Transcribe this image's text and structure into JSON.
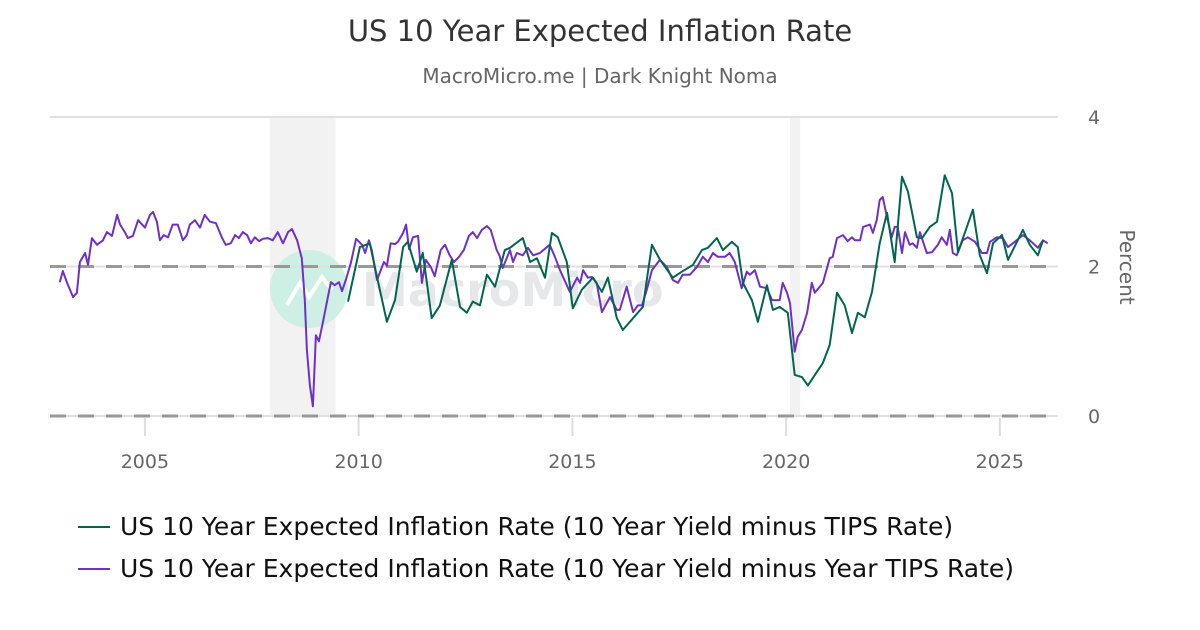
{
  "header": {
    "title": "US 10 Year Expected Inflation Rate",
    "subtitle": "MacroMicro.me | Dark Knight Noma"
  },
  "watermark": {
    "text": "MacroMicro"
  },
  "chart_data": {
    "type": "line",
    "title": "US 10 Year Expected Inflation Rate",
    "ylabel": "Percent",
    "xlabel": "",
    "xlim": [
      2002.78,
      2026.36
    ],
    "ylim": [
      0,
      4
    ],
    "x_ticks": [
      "2005",
      "2010",
      "2015",
      "2020",
      "2025"
    ],
    "y_ticks": [
      "0",
      "2",
      "4"
    ],
    "y_axis_side": "right",
    "grid": "horizontal",
    "dashed_reference_lines": [
      0,
      2
    ],
    "legend_position": "bottom",
    "recession_shading": [
      [
        2007.92,
        2009.46
      ],
      [
        2020.09,
        2020.33
      ]
    ],
    "series": [
      {
        "name": "US 10 Year Expected Inflation Rate (10 Year Yield minus TIPS Rate)",
        "color": "#00664f",
        "points": [
          [
            2009.75,
            1.53
          ],
          [
            2010.03,
            2.26
          ],
          [
            2010.26,
            2.31
          ],
          [
            2010.43,
            1.86
          ],
          [
            2010.66,
            1.26
          ],
          [
            2010.85,
            1.55
          ],
          [
            2011.04,
            2.26
          ],
          [
            2011.15,
            2.33
          ],
          [
            2011.36,
            1.93
          ],
          [
            2011.5,
            2.18
          ],
          [
            2011.71,
            1.31
          ],
          [
            2011.9,
            1.48
          ],
          [
            2012.18,
            2.09
          ],
          [
            2012.37,
            1.46
          ],
          [
            2012.53,
            1.38
          ],
          [
            2012.67,
            1.53
          ],
          [
            2012.84,
            1.48
          ],
          [
            2013.0,
            1.89
          ],
          [
            2013.19,
            1.73
          ],
          [
            2013.42,
            2.22
          ],
          [
            2013.54,
            2.25
          ],
          [
            2013.84,
            2.38
          ],
          [
            2014.01,
            2.06
          ],
          [
            2014.17,
            2.11
          ],
          [
            2014.36,
            1.85
          ],
          [
            2014.52,
            2.45
          ],
          [
            2014.66,
            2.39
          ],
          [
            2014.87,
            2.06
          ],
          [
            2015.01,
            1.44
          ],
          [
            2015.22,
            1.69
          ],
          [
            2015.48,
            1.85
          ],
          [
            2015.69,
            1.66
          ],
          [
            2015.83,
            1.85
          ],
          [
            2016.04,
            1.31
          ],
          [
            2016.18,
            1.15
          ],
          [
            2016.65,
            1.46
          ],
          [
            2016.86,
            2.29
          ],
          [
            2017.05,
            2.09
          ],
          [
            2017.35,
            1.85
          ],
          [
            2017.56,
            1.93
          ],
          [
            2017.82,
            2.02
          ],
          [
            2018.03,
            2.22
          ],
          [
            2018.17,
            2.25
          ],
          [
            2018.38,
            2.38
          ],
          [
            2018.52,
            2.22
          ],
          [
            2018.73,
            2.33
          ],
          [
            2018.87,
            2.26
          ],
          [
            2018.99,
            1.78
          ],
          [
            2019.2,
            1.55
          ],
          [
            2019.34,
            1.26
          ],
          [
            2019.55,
            1.75
          ],
          [
            2019.69,
            1.42
          ],
          [
            2019.85,
            1.46
          ],
          [
            2020.04,
            1.38
          ],
          [
            2020.2,
            0.55
          ],
          [
            2020.37,
            0.52
          ],
          [
            2020.51,
            0.41
          ],
          [
            2020.86,
            0.71
          ],
          [
            2021.02,
            0.95
          ],
          [
            2021.19,
            1.65
          ],
          [
            2021.37,
            1.48
          ],
          [
            2021.54,
            1.11
          ],
          [
            2021.68,
            1.38
          ],
          [
            2021.84,
            1.32
          ],
          [
            2022.01,
            1.66
          ],
          [
            2022.19,
            2.31
          ],
          [
            2022.36,
            2.72
          ],
          [
            2022.54,
            2.06
          ],
          [
            2022.71,
            3.2
          ],
          [
            2022.85,
            3.0
          ],
          [
            2023.06,
            2.39
          ],
          [
            2023.18,
            2.38
          ],
          [
            2023.36,
            2.53
          ],
          [
            2023.53,
            2.6
          ],
          [
            2023.71,
            3.22
          ],
          [
            2023.88,
            2.98
          ],
          [
            2024.02,
            2.19
          ],
          [
            2024.37,
            2.76
          ],
          [
            2024.53,
            2.15
          ],
          [
            2024.7,
            1.91
          ],
          [
            2024.84,
            2.31
          ],
          [
            2025.05,
            2.42
          ],
          [
            2025.19,
            2.09
          ],
          [
            2025.54,
            2.49
          ],
          [
            2025.7,
            2.29
          ],
          [
            2025.89,
            2.15
          ],
          [
            2026.01,
            2.35
          ]
        ]
      },
      {
        "name": "US 10 Year Expected Inflation Rate (10 Year Yield minus Year TIPS Rate)",
        "color": "#7030c8",
        "points": [
          [
            2003.01,
            1.79
          ],
          [
            2003.08,
            1.94
          ],
          [
            2003.18,
            1.78
          ],
          [
            2003.32,
            1.59
          ],
          [
            2003.41,
            1.65
          ],
          [
            2003.48,
            2.06
          ],
          [
            2003.6,
            2.18
          ],
          [
            2003.67,
            2.02
          ],
          [
            2003.76,
            2.38
          ],
          [
            2003.88,
            2.29
          ],
          [
            2004.02,
            2.35
          ],
          [
            2004.11,
            2.46
          ],
          [
            2004.23,
            2.41
          ],
          [
            2004.35,
            2.69
          ],
          [
            2004.42,
            2.56
          ],
          [
            2004.53,
            2.46
          ],
          [
            2004.6,
            2.38
          ],
          [
            2004.72,
            2.41
          ],
          [
            2004.84,
            2.62
          ],
          [
            2005.0,
            2.52
          ],
          [
            2005.12,
            2.69
          ],
          [
            2005.19,
            2.73
          ],
          [
            2005.28,
            2.6
          ],
          [
            2005.35,
            2.35
          ],
          [
            2005.44,
            2.42
          ],
          [
            2005.54,
            2.39
          ],
          [
            2005.65,
            2.56
          ],
          [
            2005.77,
            2.56
          ],
          [
            2005.89,
            2.35
          ],
          [
            2005.98,
            2.42
          ],
          [
            2006.05,
            2.56
          ],
          [
            2006.17,
            2.62
          ],
          [
            2006.29,
            2.52
          ],
          [
            2006.4,
            2.69
          ],
          [
            2006.52,
            2.6
          ],
          [
            2006.66,
            2.58
          ],
          [
            2006.8,
            2.39
          ],
          [
            2006.89,
            2.29
          ],
          [
            2007.01,
            2.31
          ],
          [
            2007.11,
            2.42
          ],
          [
            2007.2,
            2.38
          ],
          [
            2007.29,
            2.46
          ],
          [
            2007.39,
            2.42
          ],
          [
            2007.48,
            2.31
          ],
          [
            2007.57,
            2.39
          ],
          [
            2007.67,
            2.34
          ],
          [
            2007.76,
            2.37
          ],
          [
            2007.88,
            2.38
          ],
          [
            2007.99,
            2.35
          ],
          [
            2008.11,
            2.46
          ],
          [
            2008.23,
            2.31
          ],
          [
            2008.35,
            2.46
          ],
          [
            2008.44,
            2.5
          ],
          [
            2008.56,
            2.35
          ],
          [
            2008.67,
            2.11
          ],
          [
            2008.74,
            1.55
          ],
          [
            2008.79,
            0.88
          ],
          [
            2008.86,
            0.41
          ],
          [
            2008.93,
            0.13
          ],
          [
            2009.0,
            1.08
          ],
          [
            2009.07,
            1.0
          ],
          [
            2009.16,
            1.24
          ],
          [
            2009.28,
            1.59
          ],
          [
            2009.35,
            1.79
          ],
          [
            2009.44,
            1.75
          ],
          [
            2009.54,
            1.79
          ],
          [
            2009.61,
            1.67
          ],
          [
            2009.7,
            1.82
          ],
          [
            2009.82,
            2.05
          ],
          [
            2009.94,
            2.37
          ],
          [
            2010.08,
            2.29
          ],
          [
            2010.15,
            2.18
          ],
          [
            2010.24,
            2.35
          ],
          [
            2010.31,
            2.21
          ],
          [
            2010.43,
            1.82
          ],
          [
            2010.59,
            2.06
          ],
          [
            2010.66,
            2.01
          ],
          [
            2010.75,
            2.31
          ],
          [
            2010.85,
            2.3
          ],
          [
            2010.92,
            2.33
          ],
          [
            2011.04,
            2.45
          ],
          [
            2011.11,
            2.56
          ],
          [
            2011.18,
            2.23
          ],
          [
            2011.27,
            2.39
          ],
          [
            2011.39,
            2.41
          ],
          [
            2011.48,
            1.78
          ],
          [
            2011.57,
            2.09
          ],
          [
            2011.69,
            1.99
          ],
          [
            2011.78,
            1.87
          ],
          [
            2011.92,
            2.22
          ],
          [
            2012.02,
            2.29
          ],
          [
            2012.13,
            2.15
          ],
          [
            2012.23,
            2.06
          ],
          [
            2012.35,
            2.13
          ],
          [
            2012.46,
            2.22
          ],
          [
            2012.58,
            2.41
          ],
          [
            2012.67,
            2.46
          ],
          [
            2012.77,
            2.38
          ],
          [
            2012.88,
            2.49
          ],
          [
            2013.0,
            2.54
          ],
          [
            2013.09,
            2.49
          ],
          [
            2013.23,
            2.22
          ],
          [
            2013.3,
            2.14
          ],
          [
            2013.37,
            1.98
          ],
          [
            2013.54,
            2.22
          ],
          [
            2013.61,
            2.06
          ],
          [
            2013.7,
            2.18
          ],
          [
            2013.84,
            2.15
          ],
          [
            2013.96,
            2.25
          ],
          [
            2014.08,
            2.15
          ],
          [
            2014.24,
            2.18
          ],
          [
            2014.47,
            2.29
          ],
          [
            2014.59,
            2.13
          ],
          [
            2014.71,
            1.95
          ],
          [
            2014.94,
            1.66
          ],
          [
            2015.11,
            1.85
          ],
          [
            2015.18,
            1.78
          ],
          [
            2015.25,
            1.95
          ],
          [
            2015.36,
            1.85
          ],
          [
            2015.46,
            1.86
          ],
          [
            2015.57,
            1.78
          ],
          [
            2015.69,
            1.39
          ],
          [
            2015.88,
            1.59
          ],
          [
            2016.04,
            1.42
          ],
          [
            2016.11,
            1.42
          ],
          [
            2016.27,
            1.73
          ],
          [
            2016.42,
            1.39
          ],
          [
            2016.53,
            1.48
          ],
          [
            2016.63,
            1.48
          ],
          [
            2016.74,
            1.69
          ],
          [
            2016.86,
            1.95
          ],
          [
            2017.05,
            2.09
          ],
          [
            2017.21,
            1.99
          ],
          [
            2017.35,
            1.82
          ],
          [
            2017.47,
            1.78
          ],
          [
            2017.58,
            1.89
          ],
          [
            2017.75,
            1.89
          ],
          [
            2017.91,
            1.99
          ],
          [
            2018.05,
            2.13
          ],
          [
            2018.17,
            2.06
          ],
          [
            2018.29,
            2.18
          ],
          [
            2018.4,
            2.13
          ],
          [
            2018.57,
            2.13
          ],
          [
            2018.68,
            2.18
          ],
          [
            2018.8,
            2.06
          ],
          [
            2018.96,
            1.71
          ],
          [
            2019.08,
            1.93
          ],
          [
            2019.15,
            1.89
          ],
          [
            2019.27,
            1.95
          ],
          [
            2019.39,
            1.73
          ],
          [
            2019.55,
            1.71
          ],
          [
            2019.67,
            1.55
          ],
          [
            2019.85,
            1.55
          ],
          [
            2019.92,
            1.78
          ],
          [
            2020.02,
            1.65
          ],
          [
            2020.09,
            1.51
          ],
          [
            2020.2,
            0.86
          ],
          [
            2020.27,
            1.06
          ],
          [
            2020.37,
            1.15
          ],
          [
            2020.49,
            1.38
          ],
          [
            2020.6,
            1.78
          ],
          [
            2020.67,
            1.65
          ],
          [
            2020.86,
            1.78
          ],
          [
            2021.02,
            2.11
          ],
          [
            2021.09,
            2.13
          ],
          [
            2021.19,
            2.38
          ],
          [
            2021.33,
            2.42
          ],
          [
            2021.44,
            2.34
          ],
          [
            2021.54,
            2.39
          ],
          [
            2021.61,
            2.35
          ],
          [
            2021.73,
            2.35
          ],
          [
            2021.8,
            2.53
          ],
          [
            2021.96,
            2.56
          ],
          [
            2022.03,
            2.45
          ],
          [
            2022.12,
            2.62
          ],
          [
            2022.19,
            2.89
          ],
          [
            2022.26,
            2.93
          ],
          [
            2022.36,
            2.66
          ],
          [
            2022.47,
            2.39
          ],
          [
            2022.54,
            2.53
          ],
          [
            2022.61,
            2.53
          ],
          [
            2022.71,
            2.18
          ],
          [
            2022.78,
            2.46
          ],
          [
            2022.89,
            2.29
          ],
          [
            2022.96,
            2.31
          ],
          [
            2023.06,
            2.25
          ],
          [
            2023.13,
            2.46
          ],
          [
            2023.29,
            2.18
          ],
          [
            2023.41,
            2.19
          ],
          [
            2023.55,
            2.29
          ],
          [
            2023.64,
            2.39
          ],
          [
            2023.76,
            2.29
          ],
          [
            2023.83,
            2.49
          ],
          [
            2023.9,
            2.18
          ],
          [
            2023.99,
            2.15
          ],
          [
            2024.13,
            2.35
          ],
          [
            2024.25,
            2.39
          ],
          [
            2024.42,
            2.33
          ],
          [
            2024.58,
            2.18
          ],
          [
            2024.7,
            2.18
          ],
          [
            2024.77,
            2.33
          ],
          [
            2024.93,
            2.39
          ],
          [
            2025.07,
            2.38
          ],
          [
            2025.19,
            2.26
          ],
          [
            2025.35,
            2.33
          ],
          [
            2025.54,
            2.42
          ],
          [
            2025.7,
            2.35
          ],
          [
            2025.89,
            2.25
          ],
          [
            2026.01,
            2.35
          ],
          [
            2026.12,
            2.31
          ]
        ]
      }
    ]
  }
}
